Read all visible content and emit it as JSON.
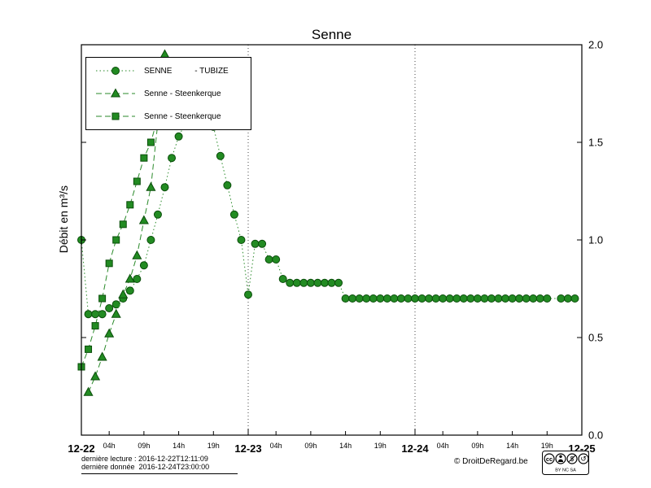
{
  "title": "Senne",
  "y_axis_label": "Débit en m³/s",
  "legend": [
    {
      "label": "SENNE          - TUBIZE",
      "marker": "circle",
      "line": "dotted"
    },
    {
      "label": "Senne - Steenkerque",
      "marker": "triangle",
      "line": "dashed"
    },
    {
      "label": "Senne - Steenkerque",
      "marker": "square",
      "line": "dashed"
    }
  ],
  "footer": {
    "last_reading": "dernière lecture : 2016-12-22T12:11:09",
    "last_data": "dernière donnée  2016-12-24T23:00:00",
    "copyright": "© DroitDeRegard.be",
    "license_text": "BY   NC   SA"
  },
  "colors": {
    "line": "#2a8a2a",
    "marker_fill": "#228b22",
    "marker_edge": "#0a4d0a",
    "axis": "#000000",
    "gridline": "#444444"
  },
  "chart_data": {
    "type": "line",
    "title": "Senne",
    "xlabel": "",
    "ylabel": "Débit en m³/s",
    "ylim": [
      0.0,
      2.0
    ],
    "x_max_hours": 72,
    "legend_position": "upper-left",
    "grid": "vertical dotted lines at day boundaries",
    "y_ticks": [
      {
        "value": 0.0,
        "label": "0.0"
      },
      {
        "value": 0.5,
        "label": "0.5"
      },
      {
        "value": 1.0,
        "label": "1.0"
      },
      {
        "value": 1.5,
        "label": "1.5"
      },
      {
        "value": 2.0,
        "label": "2.0"
      }
    ],
    "x_ticks": [
      {
        "hour": 0,
        "label": "12-22",
        "major": true
      },
      {
        "hour": 4,
        "label": "04h"
      },
      {
        "hour": 9,
        "label": "09h"
      },
      {
        "hour": 14,
        "label": "14h"
      },
      {
        "hour": 19,
        "label": "19h"
      },
      {
        "hour": 24,
        "label": "12-23",
        "major": true
      },
      {
        "hour": 28,
        "label": "04h"
      },
      {
        "hour": 33,
        "label": "09h"
      },
      {
        "hour": 38,
        "label": "14h"
      },
      {
        "hour": 43,
        "label": "19h"
      },
      {
        "hour": 48,
        "label": "12-24",
        "major": true
      },
      {
        "hour": 52,
        "label": "04h"
      },
      {
        "hour": 57,
        "label": "09h"
      },
      {
        "hour": 62,
        "label": "14h"
      },
      {
        "hour": 67,
        "label": "19h"
      },
      {
        "hour": 72,
        "label": "12-25",
        "major": true
      }
    ],
    "day_gridlines_hours": [
      24,
      48
    ],
    "series": [
      {
        "name": "SENNE - TUBIZE",
        "marker": "circle",
        "line": "dotted",
        "points": [
          [
            0,
            1.0
          ],
          [
            1,
            0.62
          ],
          [
            2,
            0.62
          ],
          [
            3,
            0.62
          ],
          [
            4,
            0.65
          ],
          [
            5,
            0.67
          ],
          [
            6,
            0.7
          ],
          [
            7,
            0.74
          ],
          [
            8,
            0.8
          ],
          [
            9,
            0.87
          ],
          [
            10,
            1.0
          ],
          [
            11,
            1.13
          ],
          [
            12,
            1.27
          ],
          [
            13,
            1.42
          ],
          [
            14,
            1.53
          ],
          [
            15,
            1.6
          ],
          [
            16,
            1.66
          ],
          [
            17,
            1.7
          ],
          [
            18,
            1.66
          ],
          [
            19,
            1.58
          ],
          [
            20,
            1.43
          ],
          [
            21,
            1.28
          ],
          [
            22,
            1.13
          ],
          [
            23,
            1.0
          ],
          [
            24,
            0.72
          ],
          [
            25,
            0.98
          ],
          [
            26,
            0.98
          ],
          [
            27,
            0.9
          ],
          [
            28,
            0.9
          ],
          [
            29,
            0.8
          ],
          [
            30,
            0.78
          ],
          [
            31,
            0.78
          ],
          [
            32,
            0.78
          ],
          [
            33,
            0.78
          ],
          [
            34,
            0.78
          ],
          [
            35,
            0.78
          ],
          [
            36,
            0.78
          ],
          [
            37,
            0.78
          ],
          [
            38,
            0.7
          ],
          [
            39,
            0.7
          ],
          [
            40,
            0.7
          ],
          [
            41,
            0.7
          ],
          [
            42,
            0.7
          ],
          [
            43,
            0.7
          ],
          [
            44,
            0.7
          ],
          [
            45,
            0.7
          ],
          [
            46,
            0.7
          ],
          [
            47,
            0.7
          ],
          [
            48,
            0.7
          ],
          [
            49,
            0.7
          ],
          [
            50,
            0.7
          ],
          [
            51,
            0.7
          ],
          [
            52,
            0.7
          ],
          [
            53,
            0.7
          ],
          [
            54,
            0.7
          ],
          [
            55,
            0.7
          ],
          [
            56,
            0.7
          ],
          [
            57,
            0.7
          ],
          [
            58,
            0.7
          ],
          [
            59,
            0.7
          ],
          [
            60,
            0.7
          ],
          [
            61,
            0.7
          ],
          [
            62,
            0.7
          ],
          [
            63,
            0.7
          ],
          [
            64,
            0.7
          ],
          [
            65,
            0.7
          ],
          [
            66,
            0.7
          ],
          [
            67,
            0.7
          ],
          [
            69,
            0.7
          ],
          [
            70,
            0.7
          ],
          [
            71,
            0.7
          ]
        ]
      },
      {
        "name": "Senne - Steenkerque",
        "marker": "triangle",
        "line": "dashed",
        "points": [
          [
            1,
            0.22
          ],
          [
            2,
            0.3
          ],
          [
            3,
            0.4
          ],
          [
            4,
            0.52
          ],
          [
            5,
            0.62
          ],
          [
            6,
            0.72
          ],
          [
            7,
            0.8
          ],
          [
            8,
            0.92
          ],
          [
            9,
            1.1
          ],
          [
            10,
            1.27
          ],
          [
            11,
            1.6
          ],
          [
            12,
            1.95
          ]
        ]
      },
      {
        "name": "Senne - Steenkerque",
        "marker": "square",
        "line": "dashed",
        "points": [
          [
            0,
            0.35
          ],
          [
            1,
            0.44
          ],
          [
            2,
            0.56
          ],
          [
            3,
            0.7
          ],
          [
            4,
            0.88
          ],
          [
            5,
            1.0
          ],
          [
            6,
            1.08
          ],
          [
            7,
            1.18
          ],
          [
            8,
            1.3
          ],
          [
            9,
            1.42
          ],
          [
            10,
            1.5
          ],
          [
            11,
            1.63
          ]
        ]
      }
    ]
  }
}
